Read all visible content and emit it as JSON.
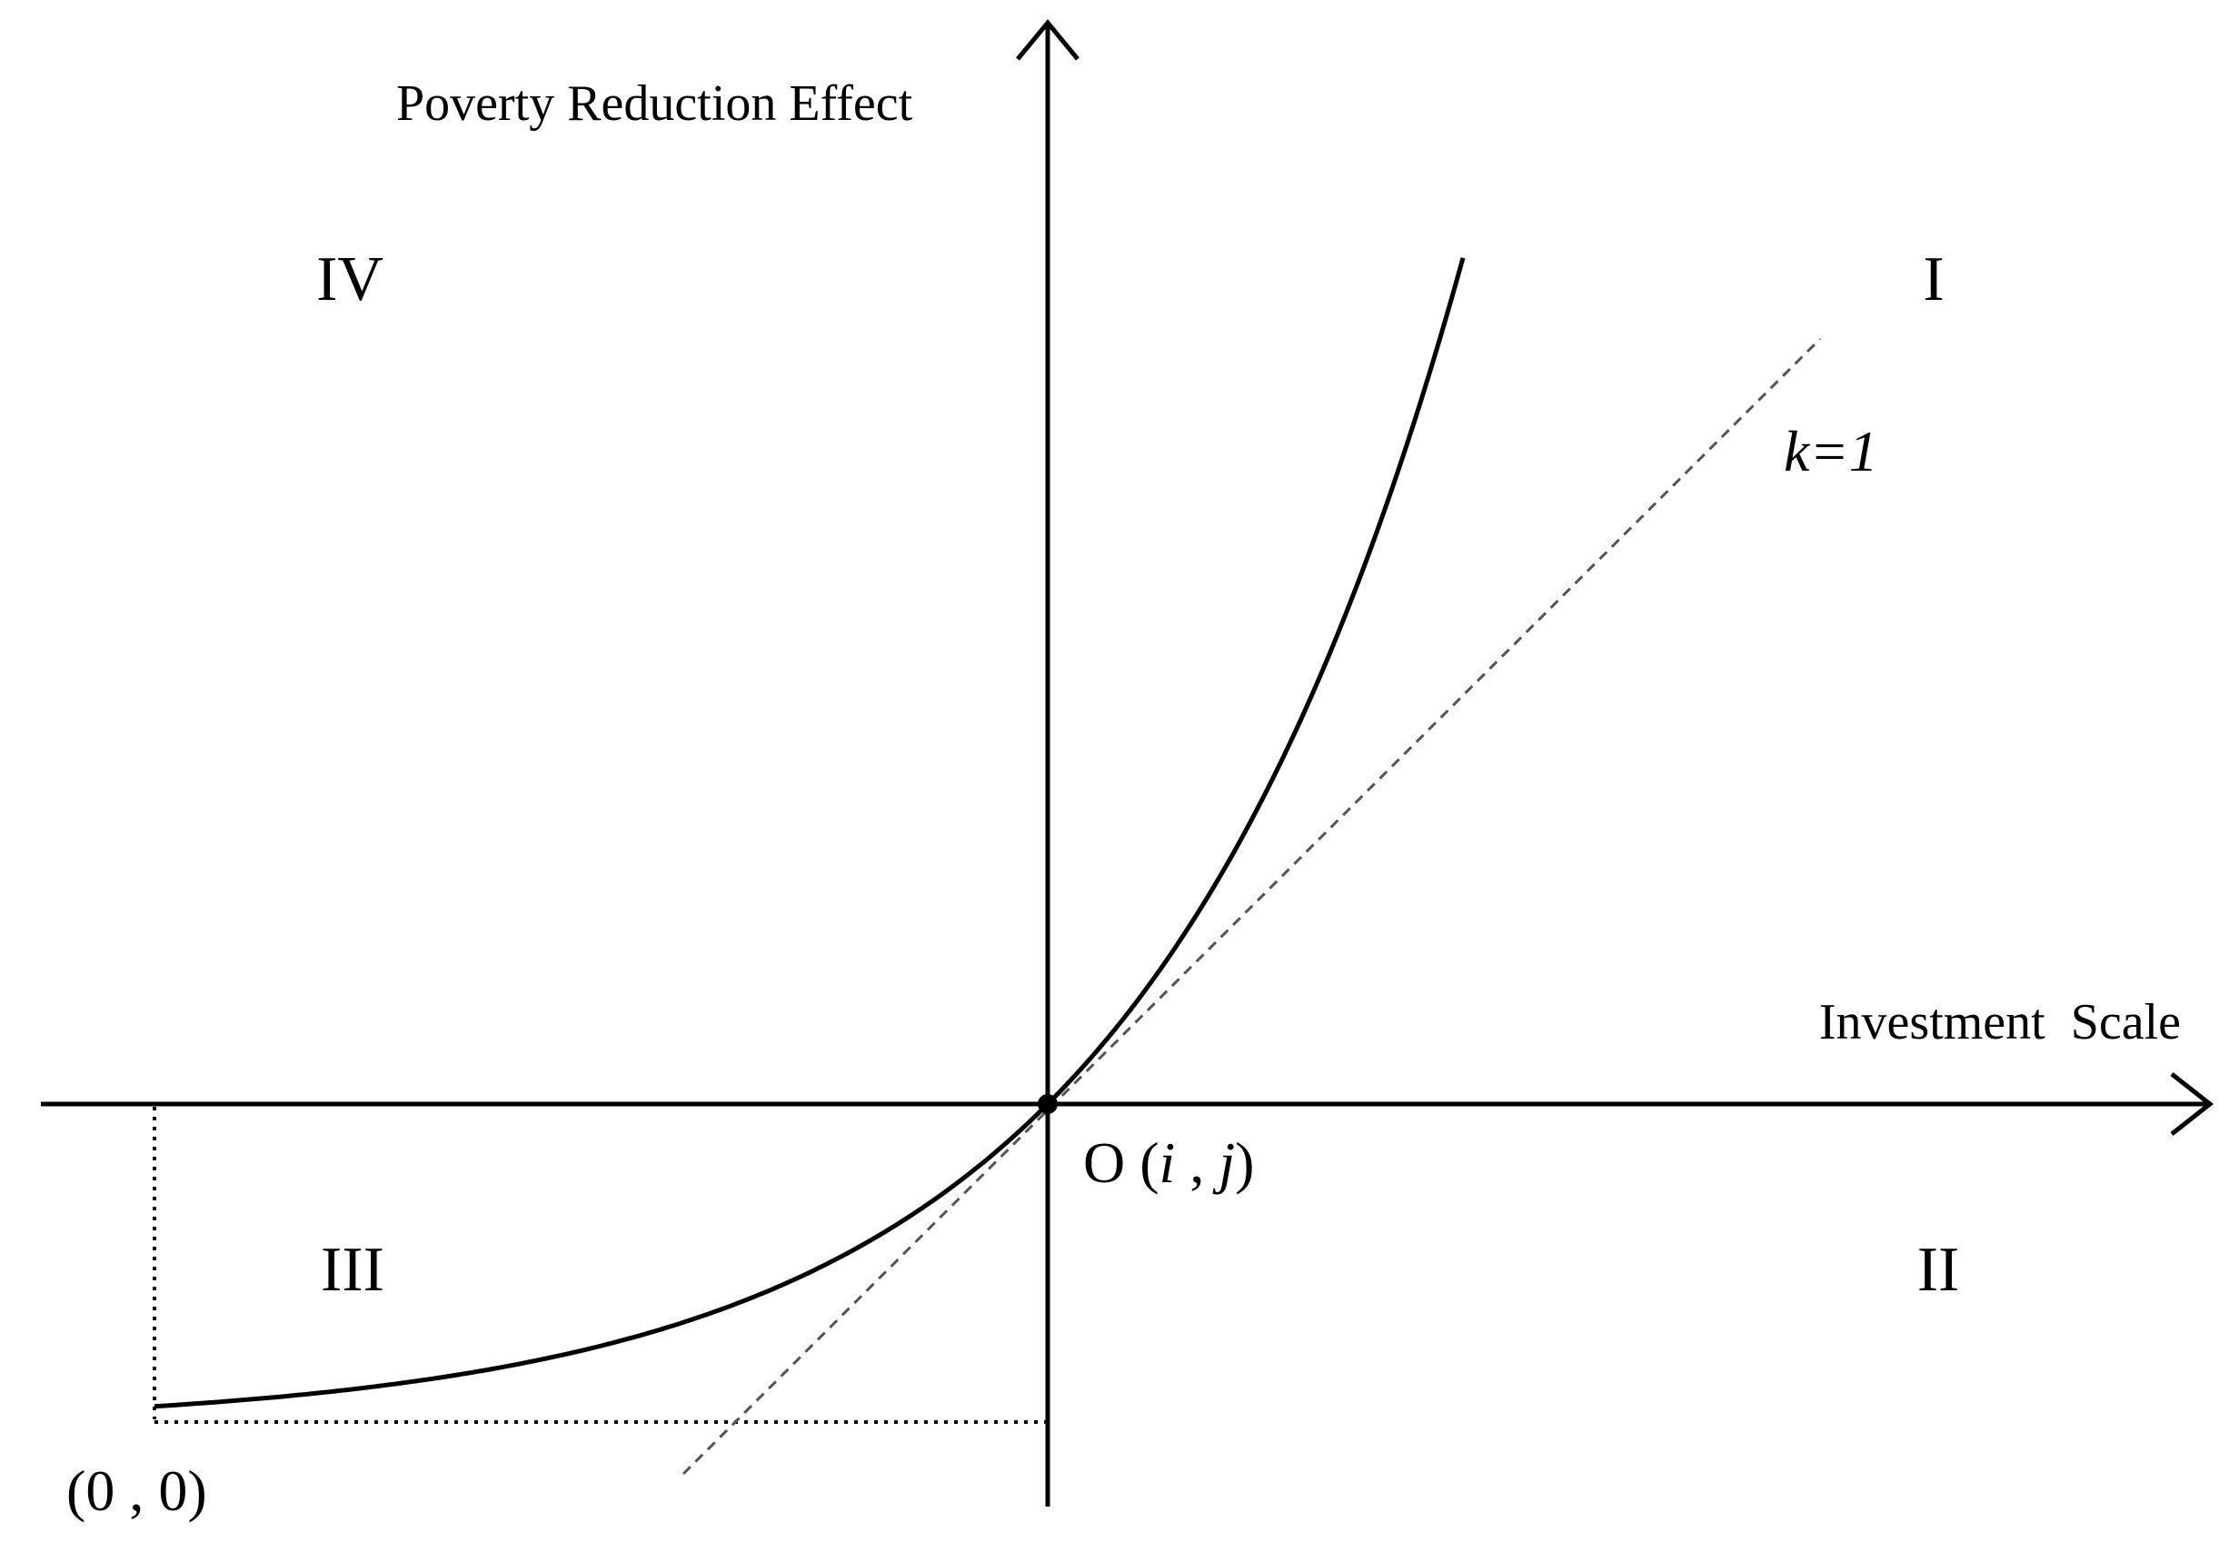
{
  "diagram": {
    "y_axis_label": "Poverty Reduction Effect",
    "x_axis_label": "Investment  Scale",
    "quadrants": {
      "I": "I",
      "II": "II",
      "III": "III",
      "IV": "IV"
    },
    "origin_label": {
      "prefix": "O (",
      "i": "i",
      "sep": " , ",
      "j": "j",
      "suffix": ")"
    },
    "corner_label": "(0 , 0)",
    "slope_label": "k=1"
  }
}
